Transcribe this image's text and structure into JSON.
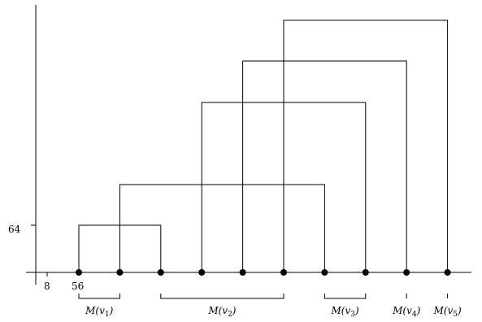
{
  "axis_labels": {
    "y_tick": "64",
    "x_tick_a": "8",
    "x_tick_b": "56"
  },
  "points_count": 10,
  "arcs": [
    {
      "from": 0,
      "to": 2
    },
    {
      "from": 1,
      "to": 6
    },
    {
      "from": 3,
      "to": 7
    },
    {
      "from": 4,
      "to": 8
    },
    {
      "from": 5,
      "to": 9
    }
  ],
  "groups": [
    {
      "name": "M",
      "var": "v",
      "sub": "1",
      "from": 0,
      "to": 1
    },
    {
      "name": "M",
      "var": "v",
      "sub": "2",
      "from": 2,
      "to": 5
    },
    {
      "name": "M",
      "var": "v",
      "sub": "3",
      "from": 6,
      "to": 7
    },
    {
      "name": "M",
      "var": "v",
      "sub": "4",
      "from": 8,
      "to": 8
    },
    {
      "name": "M",
      "var": "v",
      "sub": "5",
      "from": 9,
      "to": 9
    }
  ]
}
